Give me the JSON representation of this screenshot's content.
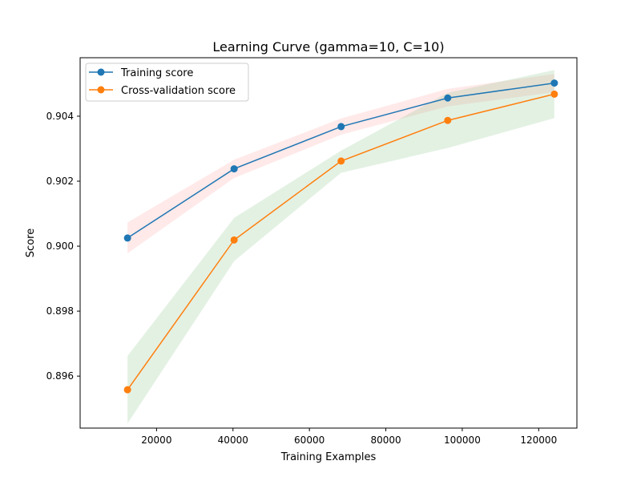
{
  "chart_data": {
    "type": "line",
    "title": "Learning Curve (gamma=10, C=10)",
    "xlabel": "Training Examples",
    "ylabel": "Score",
    "xlim": [
      0,
      130000
    ],
    "ylim": [
      0.8944,
      0.9058
    ],
    "xticks": [
      20000,
      40000,
      60000,
      80000,
      100000,
      120000
    ],
    "yticks": [
      0.896,
      0.898,
      0.9,
      0.902,
      0.904
    ],
    "xtick_labels": [
      "20000",
      "40000",
      "60000",
      "80000",
      "100000",
      "120000"
    ],
    "ytick_labels": [
      "0.896",
      "0.898",
      "0.900",
      "0.902",
      "0.904"
    ],
    "grid": false,
    "legend_position": "top-left",
    "x": [
      12400,
      40300,
      68300,
      96200,
      124100
    ],
    "series": [
      {
        "name": "Training score",
        "color": "#1f77b4",
        "band_color": "#ff9999",
        "values": [
          0.90025,
          0.90238,
          0.90368,
          0.90456,
          0.90502
        ],
        "band_low": [
          0.89978,
          0.9021,
          0.90343,
          0.9043,
          0.90474
        ],
        "band_high": [
          0.90073,
          0.90266,
          0.90393,
          0.90484,
          0.9053
        ]
      },
      {
        "name": "Cross-validation score",
        "color": "#ff7f0e",
        "band_color": "#7fbf7f",
        "values": [
          0.89558,
          0.90019,
          0.90262,
          0.90387,
          0.90468
        ],
        "band_low": [
          0.89454,
          0.89954,
          0.90226,
          0.90302,
          0.90394
        ],
        "band_high": [
          0.89662,
          0.90087,
          0.90294,
          0.90472,
          0.90542
        ]
      }
    ]
  }
}
